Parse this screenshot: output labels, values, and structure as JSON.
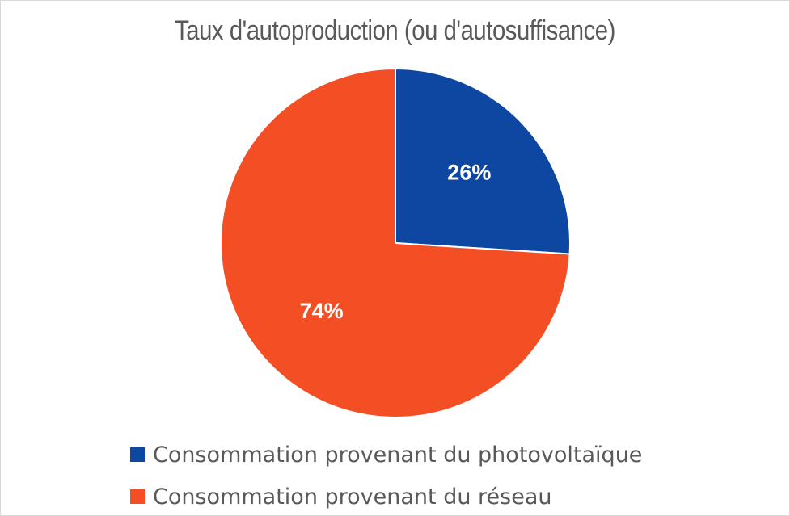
{
  "chart_data": {
    "type": "pie",
    "title": "Taux d'autoproduction (ou d'autosuffisance)",
    "categories": [
      "Consommation provenant du photovoltaïque",
      "Consommation provenant du réseau"
    ],
    "values": [
      26,
      74
    ],
    "labels": [
      "26%",
      "74%"
    ],
    "colors": [
      "#0d47a1",
      "#f44e25"
    ],
    "legend": "bottom"
  }
}
